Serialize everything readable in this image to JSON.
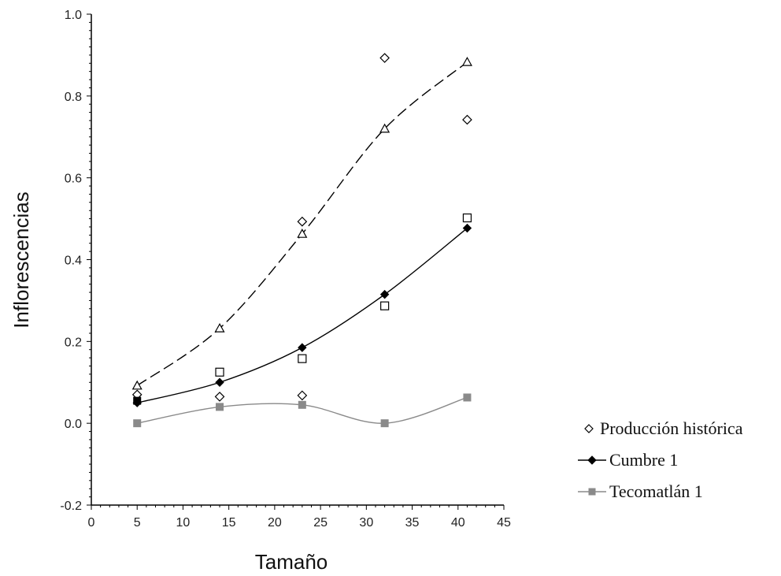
{
  "chart_data": {
    "type": "scatter",
    "title": "",
    "xlabel": "Tamaño",
    "ylabel": "Inflorescencias",
    "xlim": [
      0,
      45
    ],
    "ylim": [
      -0.2,
      1.0
    ],
    "x_ticks": [
      "0",
      "5",
      "10",
      "15",
      "20",
      "25",
      "30",
      "35",
      "40",
      "45"
    ],
    "y_ticks": [
      "-0.2",
      "0.0",
      "0.2",
      "0.4",
      "0.6",
      "0.8",
      "1.0"
    ],
    "grid": false,
    "legend_position": "bottom-right",
    "series": [
      {
        "name": "Producción histórica",
        "kind": "scatter",
        "marker": "open-diamond",
        "color": "#000000",
        "x": [
          5,
          14,
          23,
          32,
          41
        ],
        "y": [
          0.07,
          0.065,
          0.068,
          0.893,
          0.742
        ]
      },
      {
        "name": "",
        "kind": "scatter",
        "marker": "open-diamond",
        "color": "#000000",
        "x": [
          23
        ],
        "y": [
          0.493
        ]
      },
      {
        "name": "",
        "kind": "scatter",
        "marker": "open-square",
        "color": "#000000",
        "x": [
          14,
          23,
          32,
          41
        ],
        "y": [
          0.125,
          0.158,
          0.287,
          0.502
        ]
      },
      {
        "name": "",
        "kind": "line",
        "marker": "open-triangle",
        "line_style": "dashed",
        "color": "#000000",
        "x": [
          5,
          14,
          23,
          32,
          41
        ],
        "y": [
          0.092,
          0.232,
          0.463,
          0.72,
          0.883
        ]
      },
      {
        "name": "Cumbre 1",
        "kind": "line",
        "marker": "filled-diamond",
        "line_style": "solid",
        "color": "#000000",
        "x": [
          5,
          14,
          23,
          32,
          41
        ],
        "y": [
          0.05,
          0.1,
          0.185,
          0.315,
          0.477
        ]
      },
      {
        "name": "",
        "kind": "scatter",
        "marker": "filled-square",
        "color": "#000000",
        "x": [
          5
        ],
        "y": [
          0.055
        ]
      },
      {
        "name": "Tecomatlán 1",
        "kind": "line",
        "marker": "filled-square",
        "line_style": "solid",
        "color": "#8a8a8a",
        "x": [
          5,
          14,
          23,
          32,
          41
        ],
        "y": [
          0.0,
          0.04,
          0.045,
          0.0,
          0.063
        ]
      }
    ]
  }
}
